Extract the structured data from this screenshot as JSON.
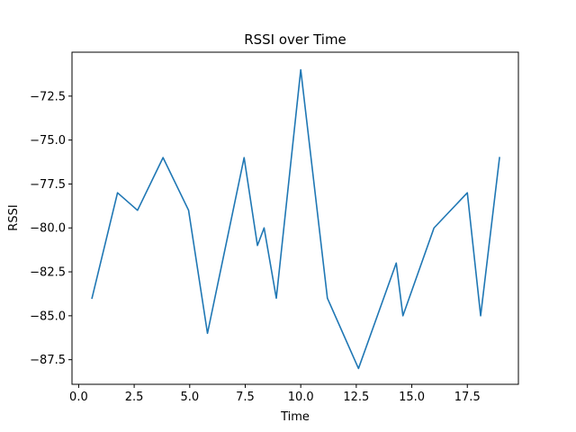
{
  "chart_data": {
    "type": "line",
    "title": "RSSI over Time",
    "xlabel": "Time",
    "ylabel": "RSSI",
    "xlim": [
      -0.3,
      19.8
    ],
    "ylim": [
      -88.9,
      -70.0
    ],
    "x_ticks": [
      0.0,
      2.5,
      5.0,
      7.5,
      10.0,
      12.5,
      15.0,
      17.5
    ],
    "x_tick_labels": [
      "0.0",
      "2.5",
      "5.0",
      "7.5",
      "10.0",
      "12.5",
      "15.0",
      "17.5"
    ],
    "y_ticks": [
      -72.5,
      -75.0,
      -77.5,
      -80.0,
      -82.5,
      -85.0,
      -87.5
    ],
    "y_tick_labels": [
      "−72.5",
      "−75.0",
      "−77.5",
      "−80.0",
      "−82.5",
      "−85.0",
      "−87.5"
    ],
    "grid": false,
    "series": [
      {
        "color": "#1f77b4",
        "x": [
          0.6,
          1.75,
          2.65,
          3.8,
          4.95,
          5.8,
          7.45,
          8.05,
          8.35,
          8.9,
          10.0,
          11.2,
          12.6,
          14.3,
          14.6,
          16.0,
          17.5,
          18.1,
          18.95
        ],
        "y": [
          -84,
          -78,
          -79,
          -76,
          -79,
          -86,
          -76,
          -81,
          -80,
          -84,
          -71,
          -84,
          -88,
          -82,
          -85,
          -80,
          -78,
          -85,
          -76
        ]
      }
    ]
  }
}
